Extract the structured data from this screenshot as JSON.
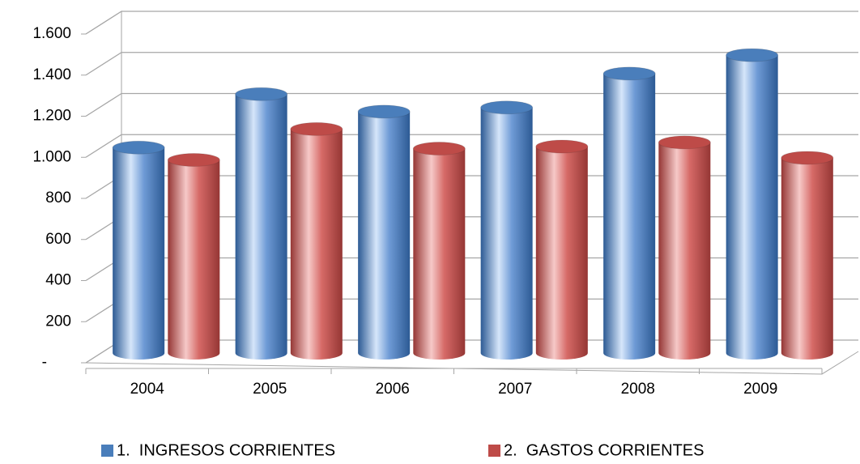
{
  "chart_data": {
    "type": "bar",
    "categories": [
      "2004",
      "2005",
      "2006",
      "2007",
      "2008",
      "2009"
    ],
    "series": [
      {
        "name": "1.  INGRESOS CORRIENTES",
        "color": "#4a7ebb",
        "values": [
          1000,
          1260,
          1175,
          1195,
          1360,
          1450
        ]
      },
      {
        "name": "2.  GASTOS CORRIENTES",
        "color": "#be4b48",
        "values": [
          940,
          1090,
          995,
          1005,
          1025,
          950
        ]
      }
    ],
    "ylim": [
      0,
      1600
    ],
    "yticks": [
      {
        "value": 0,
        "label": "-"
      },
      200,
      400,
      600,
      800,
      {
        "value": 1000,
        "label": "1.000"
      },
      {
        "value": 1200,
        "label": "1.200"
      },
      {
        "value": 1400,
        "label": "1.400"
      },
      {
        "value": 1600,
        "label": "1.600"
      }
    ],
    "grid": true,
    "legend": "bottom"
  }
}
